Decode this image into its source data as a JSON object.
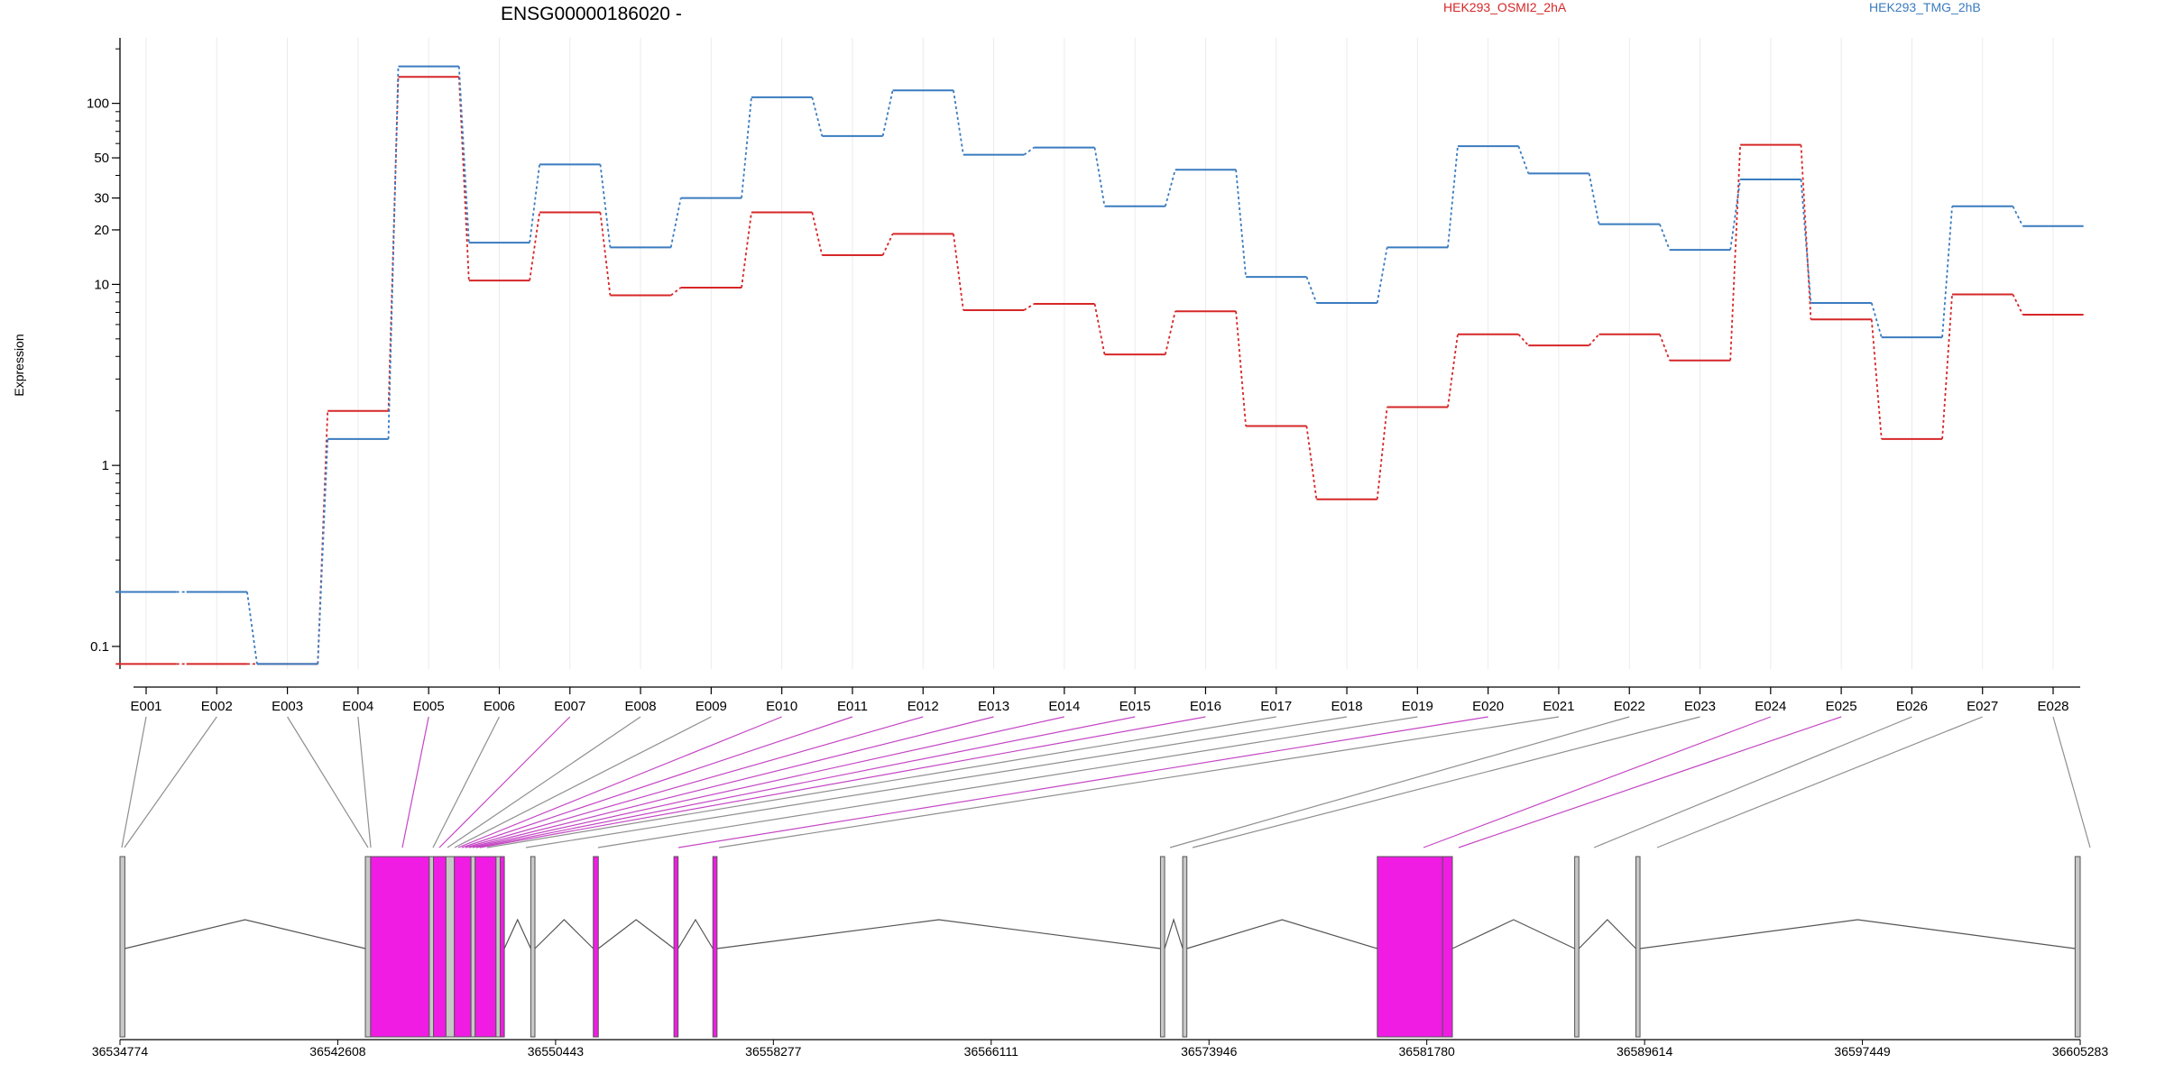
{
  "chart_data": {
    "type": "line",
    "title": "ENSG00000186020 -",
    "ylabel": "Expression",
    "xlabel": "",
    "yscale": "log",
    "ylim": [
      0.075,
      230
    ],
    "yticks": [
      0.1,
      1,
      10,
      20,
      30,
      50,
      100
    ],
    "ytick_labels": [
      "0.1",
      "1",
      "10",
      "20",
      "30",
      "50",
      "100"
    ],
    "grid": "vertical",
    "legend_placement": "top",
    "categories": [
      "E001",
      "E002",
      "E003",
      "E004",
      "E005",
      "E006",
      "E007",
      "E008",
      "E009",
      "E010",
      "E011",
      "E012",
      "E013",
      "E014",
      "E015",
      "E016",
      "E017",
      "E018",
      "E019",
      "E020",
      "E021",
      "E022",
      "E023",
      "E024",
      "E025",
      "E026",
      "E027",
      "E028"
    ],
    "series": [
      {
        "name": "HEK293_OSMI2_2hA",
        "color": "#d62728",
        "values": [
          0.08,
          0.08,
          0.08,
          2.0,
          140,
          10.5,
          25,
          8.7,
          9.6,
          25,
          14.5,
          19,
          7.2,
          7.8,
          4.1,
          7.1,
          1.65,
          0.65,
          2.1,
          5.3,
          4.6,
          5.3,
          3.8,
          59,
          6.4,
          1.4,
          8.8,
          6.8
        ]
      },
      {
        "name": "HEK293_TMG_2hB",
        "color": "#3a7bbf",
        "values": [
          0.2,
          0.2,
          0.08,
          1.4,
          160,
          17,
          46,
          16,
          30,
          108,
          66,
          118,
          52,
          57,
          27,
          43,
          11,
          7.9,
          16,
          58,
          41,
          21.5,
          15.5,
          38,
          7.9,
          5.1,
          27,
          21
        ]
      }
    ],
    "gene_model": {
      "coordinate_labels": [
        "36534774",
        "36542608",
        "36550443",
        "36558277",
        "36566111",
        "36573946",
        "36581780",
        "36589614",
        "36597449",
        "36605283"
      ],
      "highlight_color": "#f01ce4",
      "exon_color": "#c8c8c8"
    }
  }
}
